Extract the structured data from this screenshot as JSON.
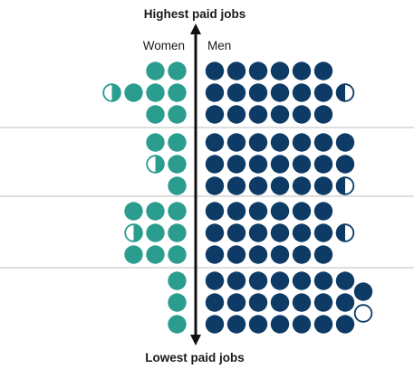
{
  "colors": {
    "women": "#2a9d8f",
    "men": "#0d3b66",
    "divider": "#bdbdbd",
    "axis": "#111111",
    "half_fill": "#ffffff"
  },
  "chart_data": {
    "type": "pictogram",
    "title": "",
    "axis_top_label": "Highest paid jobs",
    "axis_bottom_label": "Lowest paid jobs",
    "legend": {
      "women": "Women",
      "men": "Men",
      "placement": "top"
    },
    "unit_note": "",
    "bands": [
      {
        "women_rows": [
          2,
          3.5,
          2
        ],
        "men_rows": [
          6,
          6.5,
          6
        ]
      },
      {
        "women_rows": [
          2,
          1.5,
          1
        ],
        "men_rows": [
          7,
          7,
          6.5
        ]
      },
      {
        "women_rows": [
          3,
          2.5,
          3
        ],
        "men_rows": [
          6,
          6.5,
          6
        ]
      },
      {
        "women_rows": [
          1,
          1,
          1
        ],
        "men_rows": [
          7,
          7,
          7
        ]
      }
    ],
    "extras": [
      {
        "band": 4,
        "side": "men",
        "full": 1,
        "half_open": 1
      }
    ]
  }
}
